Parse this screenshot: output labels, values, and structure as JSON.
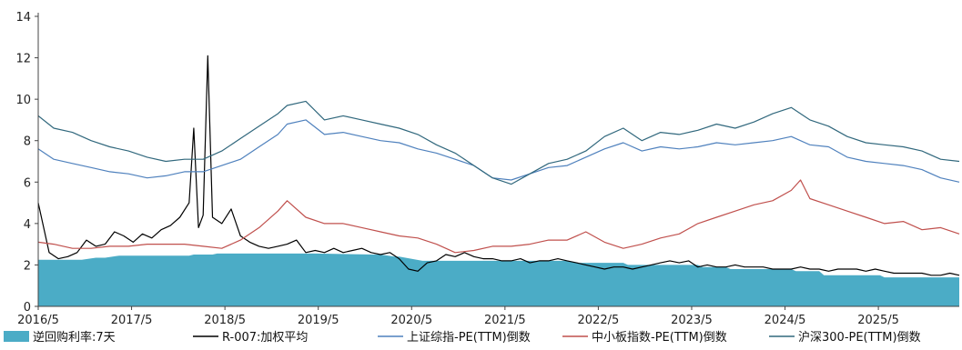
{
  "chart_data": {
    "type": "line",
    "title": "",
    "xlabel": "",
    "ylabel": "",
    "ylim": [
      0,
      14
    ],
    "yticks": [
      0,
      2,
      4,
      6,
      8,
      10,
      12,
      14
    ],
    "xlim": [
      2016.3333,
      2026.2
    ],
    "xticks": [
      {
        "label": "2016/5",
        "value": 2016.3333
      },
      {
        "label": "2017/5",
        "value": 2017.3333
      },
      {
        "label": "2018/5",
        "value": 2018.3333
      },
      {
        "label": "2019/5",
        "value": 2019.3333
      },
      {
        "label": "2020/5",
        "value": 2020.3333
      },
      {
        "label": "2021/5",
        "value": 2021.3333
      },
      {
        "label": "2022/5",
        "value": 2022.3333
      },
      {
        "label": "2023/5",
        "value": 2023.3333
      },
      {
        "label": "2024/5",
        "value": 2024.3333
      },
      {
        "label": "2025/5",
        "value": 2025.3333
      }
    ],
    "grid": false,
    "legend_position": "bottom",
    "series": [
      {
        "name": "逆回购利率:7天",
        "kind": "area",
        "color": "#4bacc6",
        "x": [
          2016.333,
          2016.8,
          2016.95,
          2017.05,
          2017.2,
          2017.95,
          2018.0,
          2018.2,
          2018.25,
          2019.0,
          2019.3,
          2019.95,
          2020.0,
          2020.15,
          2020.2,
          2020.45,
          2020.5,
          2022.0,
          2022.1,
          2022.6,
          2022.65,
          2023.4,
          2023.45,
          2023.7,
          2023.75,
          2024.4,
          2024.45,
          2024.7,
          2024.75,
          2025.35,
          2025.4,
          2026.2
        ],
        "y": [
          2.25,
          2.25,
          2.35,
          2.35,
          2.45,
          2.45,
          2.5,
          2.5,
          2.55,
          2.55,
          2.55,
          2.5,
          2.5,
          2.4,
          2.4,
          2.2,
          2.2,
          2.2,
          2.1,
          2.1,
          2.0,
          2.0,
          1.9,
          1.9,
          1.8,
          1.8,
          1.7,
          1.7,
          1.5,
          1.5,
          1.4,
          1.4
        ]
      },
      {
        "name": "R-007:加权平均",
        "kind": "line",
        "color": "#000000",
        "x": [
          2016.333,
          2016.45,
          2016.55,
          2016.65,
          2016.75,
          2016.85,
          2016.95,
          2017.05,
          2017.15,
          2017.25,
          2017.35,
          2017.45,
          2017.55,
          2017.65,
          2017.75,
          2017.85,
          2017.95,
          2018.0,
          2018.05,
          2018.1,
          2018.15,
          2018.2,
          2018.3,
          2018.4,
          2018.5,
          2018.6,
          2018.7,
          2018.8,
          2018.9,
          2019.0,
          2019.1,
          2019.2,
          2019.3,
          2019.4,
          2019.5,
          2019.6,
          2019.7,
          2019.8,
          2019.9,
          2020.0,
          2020.1,
          2020.2,
          2020.3,
          2020.4,
          2020.5,
          2020.6,
          2020.7,
          2020.8,
          2020.9,
          2021.0,
          2021.1,
          2021.2,
          2021.3,
          2021.4,
          2021.5,
          2021.6,
          2021.7,
          2021.8,
          2021.9,
          2022.0,
          2022.1,
          2022.2,
          2022.3,
          2022.4,
          2022.5,
          2022.6,
          2022.7,
          2022.8,
          2022.9,
          2023.0,
          2023.1,
          2023.2,
          2023.3,
          2023.4,
          2023.5,
          2023.6,
          2023.7,
          2023.8,
          2023.9,
          2024.0,
          2024.1,
          2024.2,
          2024.3,
          2024.4,
          2024.5,
          2024.6,
          2024.7,
          2024.8,
          2024.9,
          2025.0,
          2025.1,
          2025.2,
          2025.3,
          2025.4,
          2025.5,
          2025.6,
          2025.7,
          2025.8,
          2025.9,
          2026.0,
          2026.1,
          2026.2
        ],
        "y": [
          5.0,
          2.6,
          2.3,
          2.4,
          2.6,
          3.2,
          2.9,
          3.0,
          3.6,
          3.4,
          3.1,
          3.5,
          3.3,
          3.7,
          3.9,
          4.3,
          5.0,
          8.6,
          3.8,
          4.4,
          12.1,
          4.3,
          4.0,
          4.7,
          3.4,
          3.1,
          2.9,
          2.8,
          2.9,
          3.0,
          3.2,
          2.6,
          2.7,
          2.6,
          2.8,
          2.6,
          2.7,
          2.8,
          2.6,
          2.5,
          2.6,
          2.3,
          1.8,
          1.7,
          2.1,
          2.2,
          2.5,
          2.4,
          2.6,
          2.4,
          2.3,
          2.3,
          2.2,
          2.2,
          2.3,
          2.1,
          2.2,
          2.2,
          2.3,
          2.2,
          2.1,
          2.0,
          1.9,
          1.8,
          1.9,
          1.9,
          1.8,
          1.9,
          2.0,
          2.1,
          2.2,
          2.1,
          2.2,
          1.9,
          2.0,
          1.9,
          1.9,
          2.0,
          1.9,
          1.9,
          1.9,
          1.8,
          1.8,
          1.8,
          1.9,
          1.8,
          1.8,
          1.7,
          1.8,
          1.8,
          1.8,
          1.7,
          1.8,
          1.7,
          1.6,
          1.6,
          1.6,
          1.6,
          1.5,
          1.5,
          1.6,
          1.5
        ]
      },
      {
        "name": "上证综指-PE(TTM)倒数",
        "kind": "line",
        "color": "#4f81bd",
        "x": [
          2016.333,
          2016.5,
          2016.7,
          2016.9,
          2017.1,
          2017.3,
          2017.5,
          2017.7,
          2017.9,
          2018.1,
          2018.3,
          2018.5,
          2018.7,
          2018.9,
          2019.0,
          2019.2,
          2019.4,
          2019.6,
          2019.8,
          2020.0,
          2020.2,
          2020.4,
          2020.6,
          2020.8,
          2021.0,
          2021.2,
          2021.4,
          2021.6,
          2021.8,
          2022.0,
          2022.2,
          2022.4,
          2022.6,
          2022.8,
          2023.0,
          2023.2,
          2023.4,
          2023.6,
          2023.8,
          2024.0,
          2024.2,
          2024.4,
          2024.6,
          2024.8,
          2025.0,
          2025.2,
          2025.4,
          2025.6,
          2025.8,
          2026.0,
          2026.2
        ],
        "y": [
          7.6,
          7.1,
          6.9,
          6.7,
          6.5,
          6.4,
          6.2,
          6.3,
          6.5,
          6.5,
          6.8,
          7.1,
          7.7,
          8.3,
          8.8,
          9.0,
          8.3,
          8.4,
          8.2,
          8.0,
          7.9,
          7.6,
          7.4,
          7.1,
          6.8,
          6.2,
          6.1,
          6.4,
          6.7,
          6.8,
          7.2,
          7.6,
          7.9,
          7.5,
          7.7,
          7.6,
          7.7,
          7.9,
          7.8,
          7.9,
          8.0,
          8.2,
          7.8,
          7.7,
          7.2,
          7.0,
          6.9,
          6.8,
          6.6,
          6.2,
          6.0
        ]
      },
      {
        "name": "中小板指数-PE(TTM)倒数",
        "kind": "line",
        "color": "#c0504d",
        "x": [
          2016.333,
          2016.5,
          2016.7,
          2016.9,
          2017.1,
          2017.3,
          2017.5,
          2017.7,
          2017.9,
          2018.1,
          2018.3,
          2018.5,
          2018.7,
          2018.9,
          2019.0,
          2019.2,
          2019.4,
          2019.6,
          2019.8,
          2020.0,
          2020.2,
          2020.4,
          2020.6,
          2020.8,
          2021.0,
          2021.2,
          2021.4,
          2021.6,
          2021.8,
          2022.0,
          2022.2,
          2022.4,
          2022.6,
          2022.8,
          2023.0,
          2023.2,
          2023.4,
          2023.6,
          2023.8,
          2024.0,
          2024.2,
          2024.4,
          2024.5,
          2024.6,
          2024.8,
          2025.0,
          2025.2,
          2025.4,
          2025.6,
          2025.8,
          2026.0,
          2026.2
        ],
        "y": [
          3.1,
          3.0,
          2.8,
          2.8,
          2.9,
          2.9,
          3.0,
          3.0,
          3.0,
          2.9,
          2.8,
          3.2,
          3.8,
          4.6,
          5.1,
          4.3,
          4.0,
          4.0,
          3.8,
          3.6,
          3.4,
          3.3,
          3.0,
          2.6,
          2.7,
          2.9,
          2.9,
          3.0,
          3.2,
          3.2,
          3.6,
          3.1,
          2.8,
          3.0,
          3.3,
          3.5,
          4.0,
          4.3,
          4.6,
          4.9,
          5.1,
          5.6,
          6.1,
          5.2,
          4.9,
          4.6,
          4.3,
          4.0,
          4.1,
          3.7,
          3.8,
          3.5
        ]
      },
      {
        "name": "沪深300-PE(TTM)倒数",
        "kind": "line",
        "color": "#31687d",
        "x": [
          2016.333,
          2016.5,
          2016.7,
          2016.9,
          2017.1,
          2017.3,
          2017.5,
          2017.7,
          2017.9,
          2018.1,
          2018.3,
          2018.5,
          2018.7,
          2018.9,
          2019.0,
          2019.2,
          2019.4,
          2019.6,
          2019.8,
          2020.0,
          2020.2,
          2020.4,
          2020.6,
          2020.8,
          2021.0,
          2021.2,
          2021.4,
          2021.6,
          2021.8,
          2022.0,
          2022.2,
          2022.4,
          2022.6,
          2022.8,
          2023.0,
          2023.2,
          2023.4,
          2023.6,
          2023.8,
          2024.0,
          2024.2,
          2024.4,
          2024.6,
          2024.8,
          2025.0,
          2025.2,
          2025.4,
          2025.6,
          2025.8,
          2026.0,
          2026.2
        ],
        "y": [
          9.2,
          8.6,
          8.4,
          8.0,
          7.7,
          7.5,
          7.2,
          7.0,
          7.1,
          7.1,
          7.5,
          8.1,
          8.7,
          9.3,
          9.7,
          9.9,
          9.0,
          9.2,
          9.0,
          8.8,
          8.6,
          8.3,
          7.8,
          7.4,
          6.8,
          6.2,
          5.9,
          6.4,
          6.9,
          7.1,
          7.5,
          8.2,
          8.6,
          8.0,
          8.4,
          8.3,
          8.5,
          8.8,
          8.6,
          8.9,
          9.3,
          9.6,
          9.0,
          8.7,
          8.2,
          7.9,
          7.8,
          7.7,
          7.5,
          7.1,
          7.0
        ]
      }
    ]
  }
}
